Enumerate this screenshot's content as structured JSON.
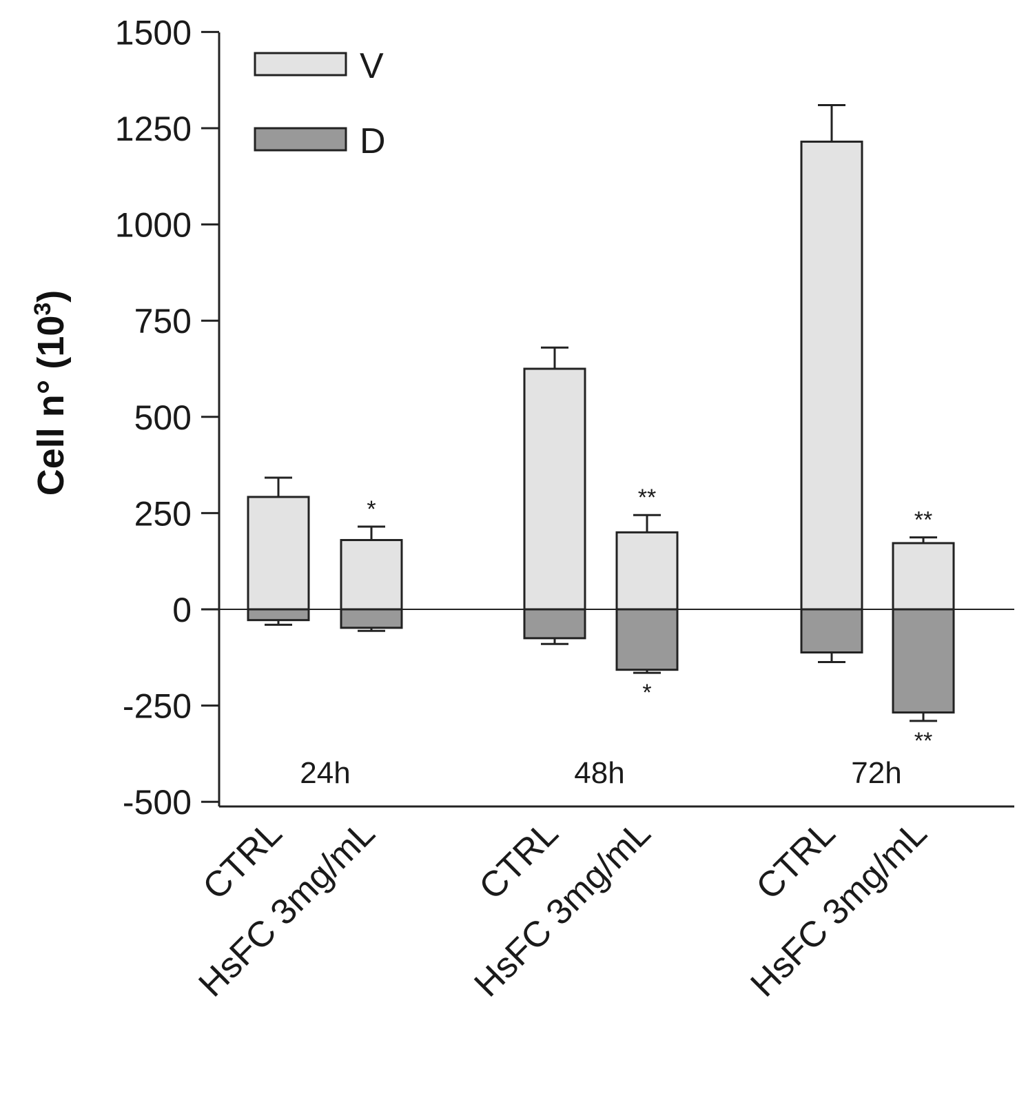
{
  "chart_data": {
    "type": "bar",
    "ylabel": "Cell n° (10",
    "ylabel_superscript": "3",
    "ylabel_close": ")",
    "ylim": [
      -500,
      1500
    ],
    "yticks": [
      1500,
      1250,
      1000,
      750,
      500,
      250,
      0,
      -250,
      -500
    ],
    "groups": [
      "24h",
      "48h",
      "72h"
    ],
    "categories": [
      "CTRL",
      "HsFC 3mg/mL",
      "CTRL",
      "HsFC 3mg/mL",
      "CTRL",
      "HsFC 3mg/mL"
    ],
    "series": [
      {
        "name": "V",
        "color": "#e3e3e3",
        "values": [
          292,
          180,
          625,
          200,
          1215,
          172
        ],
        "errors": [
          50,
          35,
          55,
          45,
          95,
          15
        ],
        "significance": [
          "",
          "*",
          "",
          "**",
          "",
          "**"
        ]
      },
      {
        "name": "D",
        "color": "#999999",
        "values": [
          -28,
          -48,
          -75,
          -157,
          -112,
          -268
        ],
        "errors": [
          12,
          8,
          15,
          8,
          25,
          22
        ],
        "significance": [
          "",
          "",
          "",
          "*",
          "",
          "**"
        ]
      }
    ]
  }
}
